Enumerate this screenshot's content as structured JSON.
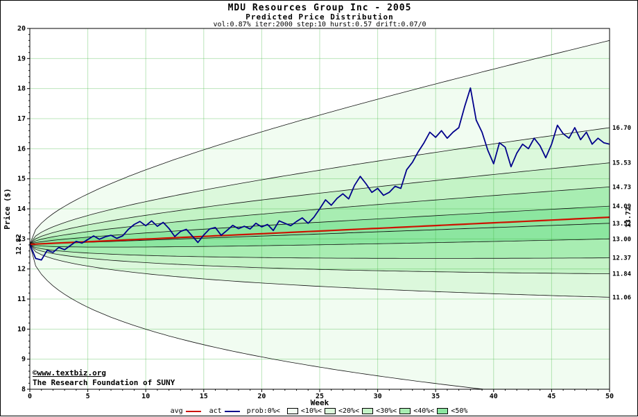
{
  "title": "MDU Resources Group Inc - 2005",
  "subtitle": "Predicted Price Distribution",
  "params_line": "vol:0.87% iter:2000 step:10 hurst:0.57 drift:0.07/0",
  "watermark": {
    "line1": "©www.textbiz.org",
    "line2": "The Research Foundation of SUNY"
  },
  "legend": {
    "avg_label": "avg",
    "act_label": "act",
    "prob_label": "prob:0%<",
    "band_labels": [
      "<10%<",
      "<20%<",
      "<30%<",
      "<40%<",
      "<50%"
    ]
  },
  "colors": {
    "avg": "#cc1100",
    "act": "#00008b",
    "grid": "#3cb43c",
    "boundary": "#111111",
    "watermark": "#0000bb",
    "band_fills": [
      "#f1fcf1",
      "#dcf8dc",
      "#c4f3c6",
      "#a8edb2",
      "#8ce6a0"
    ]
  },
  "chart_data": {
    "type": "line",
    "title": "MDU Resources Group Inc - 2005",
    "xlabel": "Week",
    "ylabel": "Price ($)",
    "xlim": [
      0,
      50
    ],
    "ylim": [
      8,
      20
    ],
    "grid": true,
    "legend_position": "bottom",
    "x_major_ticks": [
      0,
      5,
      10,
      15,
      20,
      25,
      30,
      35,
      40,
      45,
      50
    ],
    "y_major_ticks": [
      8,
      9,
      10,
      11,
      12,
      13,
      14,
      15,
      16,
      17,
      18,
      19,
      20
    ],
    "start_price": 12.82,
    "start_label": "12.82",
    "median_end": 13.52,
    "avg_line": {
      "name": "avg",
      "start": 12.82,
      "end": 13.72,
      "end_label": "13.72"
    },
    "fan_boundaries": [
      {
        "prob": "0%",
        "upper_end": 19.6,
        "lower_end": 7.57,
        "labeled": false
      },
      {
        "prob": "10%",
        "upper_end": 16.7,
        "lower_end": 11.06,
        "labeled": true
      },
      {
        "prob": "20%",
        "upper_end": 15.53,
        "lower_end": 11.84,
        "labeled": true
      },
      {
        "prob": "30%",
        "upper_end": 14.73,
        "lower_end": 12.37,
        "labeled": true
      },
      {
        "prob": "40%",
        "upper_end": 14.09,
        "lower_end": 13.0,
        "labeled": true
      }
    ],
    "act_series": {
      "name": "act",
      "x_start": 0,
      "x_step": 0.5,
      "values": [
        12.82,
        12.35,
        12.3,
        12.62,
        12.55,
        12.72,
        12.64,
        12.78,
        12.92,
        12.86,
        12.98,
        13.1,
        12.99,
        13.07,
        13.12,
        13.02,
        13.1,
        13.32,
        13.48,
        13.58,
        13.44,
        13.6,
        13.42,
        13.55,
        13.35,
        13.08,
        13.25,
        13.32,
        13.1,
        12.88,
        13.13,
        13.33,
        13.38,
        13.12,
        13.28,
        13.45,
        13.34,
        13.42,
        13.33,
        13.52,
        13.4,
        13.48,
        13.28,
        13.6,
        13.52,
        13.44,
        13.58,
        13.7,
        13.52,
        13.72,
        14.0,
        14.3,
        14.12,
        14.35,
        14.5,
        14.33,
        14.78,
        15.08,
        14.83,
        14.55,
        14.68,
        14.45,
        14.55,
        14.75,
        14.68,
        15.3,
        15.55,
        15.9,
        16.2,
        16.55,
        16.38,
        16.6,
        16.35,
        16.55,
        16.7,
        17.4,
        18.02,
        16.95,
        16.55,
        15.95,
        15.5,
        16.2,
        16.05,
        15.4,
        15.85,
        16.15,
        16.0,
        16.35,
        16.1,
        15.7,
        16.15,
        16.78,
        16.5,
        16.35,
        16.7,
        16.3,
        16.55,
        16.15,
        16.35,
        16.2,
        16.15
      ]
    }
  }
}
